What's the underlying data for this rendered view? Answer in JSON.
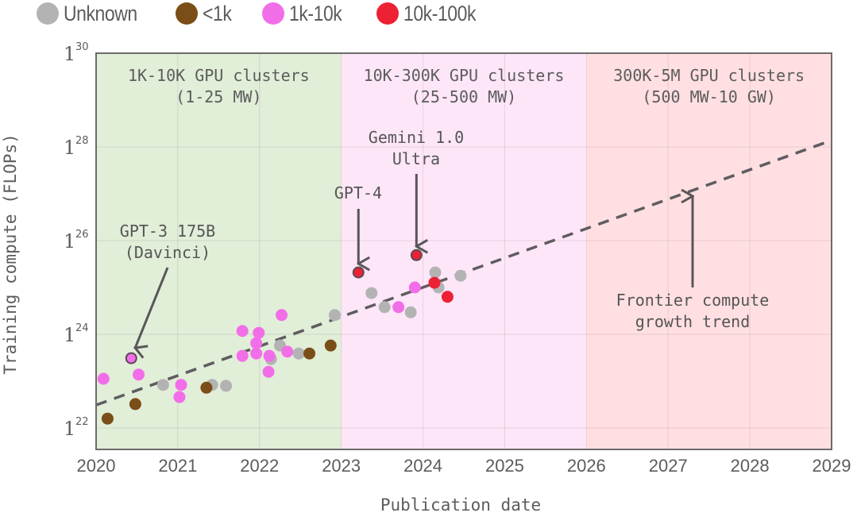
{
  "legend": {
    "items": [
      {
        "label": "Unknown",
        "color": "#b3b3b3"
      },
      {
        "label": "<1k",
        "color": "#7a4e16"
      },
      {
        "label": "1k-10k",
        "color": "#f26ee8"
      },
      {
        "label": "10k-100k",
        "color": "#ec2234"
      }
    ]
  },
  "chart_data": {
    "type": "scatter",
    "title": "",
    "xlabel": "Publication date",
    "ylabel": "Training compute (FLOPs)",
    "x_scale": "linear (years)",
    "y_scale": "log10",
    "xlim": [
      2020,
      2029
    ],
    "ylim_log10": [
      21.55,
      30
    ],
    "x_ticks": [
      "2020",
      "2021",
      "2022",
      "2023",
      "2024",
      "2025",
      "2026",
      "2027",
      "2028",
      "2029"
    ],
    "y_ticks": [
      {
        "base": "1",
        "exp": "22",
        "log10": 22
      },
      {
        "base": "1",
        "exp": "24",
        "log10": 24
      },
      {
        "base": "1",
        "exp": "26",
        "log10": 26
      },
      {
        "base": "1",
        "exp": "28",
        "log10": 28
      },
      {
        "base": "1",
        "exp": "30",
        "log10": 30
      }
    ],
    "grid": true,
    "legend_placement": "top-left (above plot)",
    "regions": [
      {
        "x_start": 2020,
        "x_end": 2023,
        "label_line1": "1K-10K GPU clusters",
        "label_line2": "(1-25 MW)",
        "color": "#e1eed8"
      },
      {
        "x_start": 2023,
        "x_end": 2026,
        "label_line1": "10K-300K GPU clusters",
        "label_line2": "(25-500 MW)",
        "color": "#fde6f8"
      },
      {
        "x_start": 2026,
        "x_end": 2029,
        "label_line1": "300K-5M GPU clusters",
        "label_line2": "(500 MW-10 GW)",
        "color": "#ffdfe2"
      }
    ],
    "trend": {
      "label_line1": "Frontier compute",
      "label_line2": "growth trend",
      "x": [
        2020,
        2029
      ],
      "log10_y": [
        22.49,
        28.14
      ],
      "style": "dashed"
    },
    "categories": [
      "Unknown",
      "<1k",
      "1k-10k",
      "10k-100k"
    ],
    "series": [
      {
        "name": "Unknown",
        "color": "#b3b3b3",
        "points": [
          [
            2020.82,
            22.92
          ],
          [
            2021.42,
            22.92
          ],
          [
            2021.59,
            22.9
          ],
          [
            2022.14,
            23.47
          ],
          [
            2022.25,
            23.76
          ],
          [
            2022.48,
            23.59
          ],
          [
            2022.92,
            24.41
          ],
          [
            2023.37,
            24.88
          ],
          [
            2023.53,
            24.58
          ],
          [
            2023.85,
            24.47
          ],
          [
            2024.15,
            25.32
          ],
          [
            2024.19,
            25.0
          ],
          [
            2024.46,
            25.25
          ]
        ]
      },
      {
        "name": "<1k",
        "color": "#7a4e16",
        "points": [
          [
            2020.14,
            22.2
          ],
          [
            2020.48,
            22.51
          ],
          [
            2021.35,
            22.86
          ],
          [
            2022.61,
            23.59
          ],
          [
            2022.87,
            23.76
          ]
        ]
      },
      {
        "name": "1k-10k",
        "color": "#f26ee8",
        "points": [
          [
            2020.09,
            23.05
          ],
          [
            2020.43,
            23.49
          ],
          [
            2020.52,
            23.14
          ],
          [
            2021.04,
            22.92
          ],
          [
            2021.02,
            22.66
          ],
          [
            2021.79,
            24.07
          ],
          [
            2021.79,
            23.54
          ],
          [
            2021.96,
            23.81
          ],
          [
            2021.99,
            24.03
          ],
          [
            2021.96,
            23.59
          ],
          [
            2022.11,
            23.2
          ],
          [
            2022.12,
            23.54
          ],
          [
            2022.27,
            24.41
          ],
          [
            2022.34,
            23.63
          ],
          [
            2023.7,
            24.58
          ],
          [
            2023.9,
            25.0
          ]
        ]
      },
      {
        "name": "10k-100k",
        "color": "#ec2234",
        "points": [
          [
            2023.21,
            25.32
          ],
          [
            2023.92,
            25.69
          ],
          [
            2024.14,
            25.1
          ],
          [
            2024.3,
            24.8
          ]
        ]
      }
    ],
    "annotations": [
      {
        "id": "gpt3",
        "line1": "GPT-3 175B",
        "line2": "(Davinci)",
        "x": 2020.43,
        "log10_y": 23.49,
        "series": "1k-10k"
      },
      {
        "id": "gpt4",
        "line1": "GPT-4",
        "line2": "",
        "x": 2023.21,
        "log10_y": 25.32,
        "series": "10k-100k"
      },
      {
        "id": "gemini",
        "line1": "Gemini 1.0",
        "line2": "Ultra",
        "x": 2023.92,
        "log10_y": 25.69,
        "series": "10k-100k"
      }
    ]
  }
}
